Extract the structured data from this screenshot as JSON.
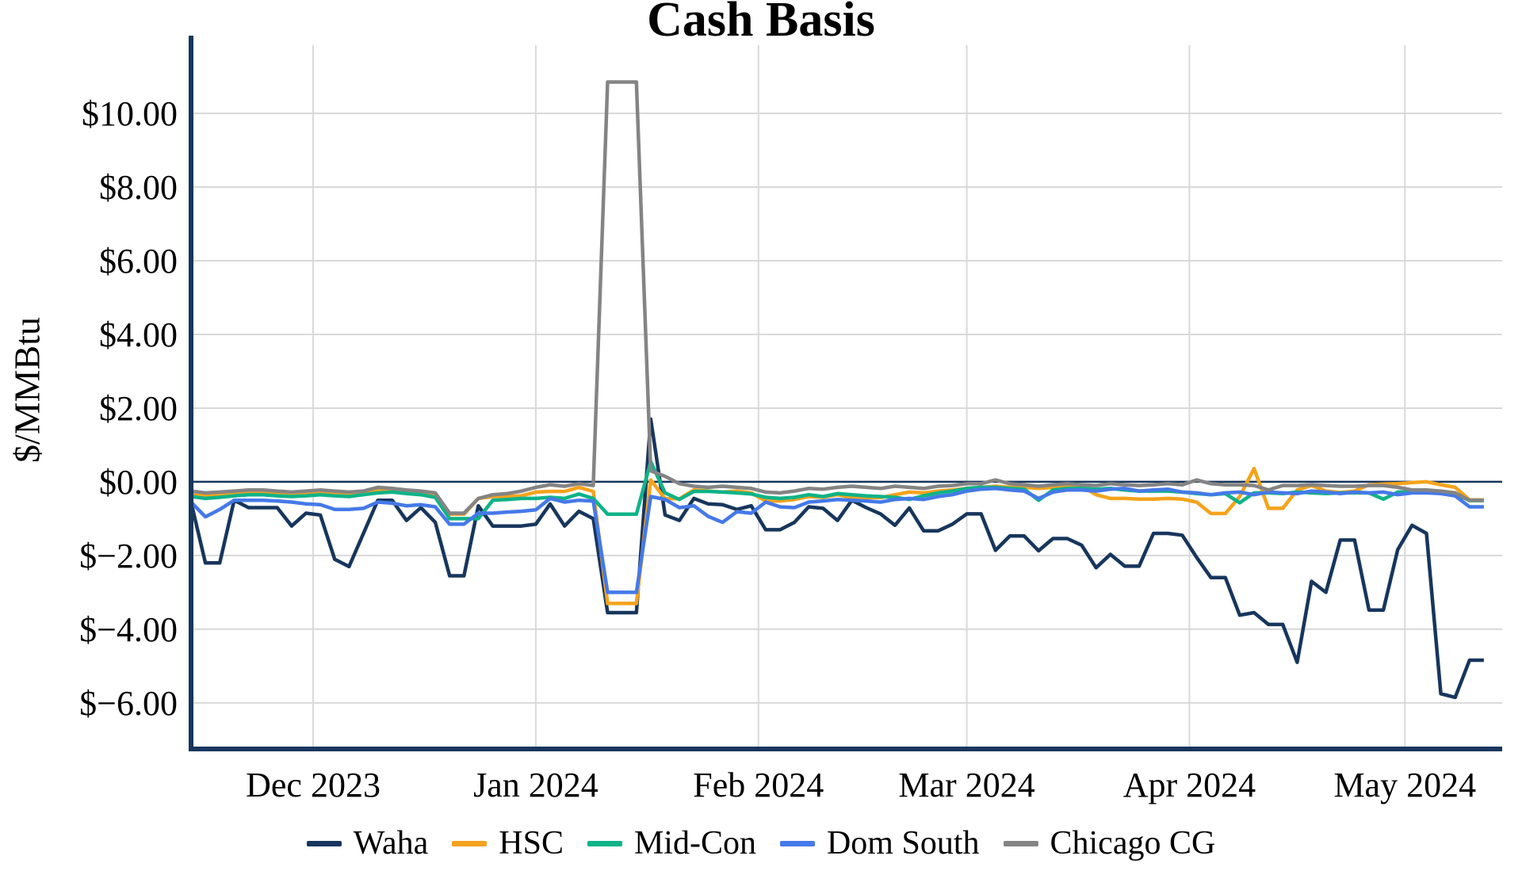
{
  "chart_data": {
    "type": "line",
    "title": "Cash Basis",
    "ylabel": "$/MMBtu",
    "xlabel": "",
    "grid": true,
    "legend_position": "bottom",
    "x_unit": "date",
    "x_range": [
      "2023-11-14",
      "2024-05-13"
    ],
    "ylim": [
      -7.25,
      11.85
    ],
    "y_ticks": [
      {
        "value": 10,
        "label": "$10.00"
      },
      {
        "value": 8,
        "label": "$8.00"
      },
      {
        "value": 6,
        "label": "$6.00"
      },
      {
        "value": 4,
        "label": "$4.00"
      },
      {
        "value": 2,
        "label": "$2.00"
      },
      {
        "value": 0,
        "label": "$0.00"
      },
      {
        "value": -2,
        "label": "$−2.00"
      },
      {
        "value": -4,
        "label": "$−4.00"
      },
      {
        "value": -6,
        "label": "$−6.00"
      }
    ],
    "x_ticks": [
      {
        "date": "2023-12-01",
        "label": "Dec 2023"
      },
      {
        "date": "2024-01-01",
        "label": "Jan 2024"
      },
      {
        "date": "2024-02-01",
        "label": "Feb 2024"
      },
      {
        "date": "2024-03-01",
        "label": "Mar 2024"
      },
      {
        "date": "2024-04-01",
        "label": "Apr 2024"
      },
      {
        "date": "2024-05-01",
        "label": "May 2024"
      }
    ],
    "zero_line": 0,
    "dates": [
      "2023-11-14",
      "2023-11-16",
      "2023-11-18",
      "2023-11-20",
      "2023-11-22",
      "2023-11-24",
      "2023-11-26",
      "2023-11-28",
      "2023-11-30",
      "2023-12-02",
      "2023-12-04",
      "2023-12-06",
      "2023-12-08",
      "2023-12-10",
      "2023-12-12",
      "2023-12-14",
      "2023-12-16",
      "2023-12-18",
      "2023-12-20",
      "2023-12-22",
      "2023-12-24",
      "2023-12-26",
      "2023-12-28",
      "2023-12-30",
      "2024-01-01",
      "2024-01-03",
      "2024-01-05",
      "2024-01-07",
      "2024-01-09",
      "2024-01-11",
      "2024-01-13",
      "2024-01-15",
      "2024-01-17",
      "2024-01-19",
      "2024-01-21",
      "2024-01-23",
      "2024-01-25",
      "2024-01-27",
      "2024-01-29",
      "2024-01-31",
      "2024-02-02",
      "2024-02-04",
      "2024-02-06",
      "2024-02-08",
      "2024-02-10",
      "2024-02-12",
      "2024-02-14",
      "2024-02-16",
      "2024-02-18",
      "2024-02-20",
      "2024-02-22",
      "2024-02-24",
      "2024-02-26",
      "2024-02-28",
      "2024-03-01",
      "2024-03-03",
      "2024-03-05",
      "2024-03-07",
      "2024-03-09",
      "2024-03-11",
      "2024-03-13",
      "2024-03-15",
      "2024-03-17",
      "2024-03-19",
      "2024-03-21",
      "2024-03-23",
      "2024-03-25",
      "2024-03-27",
      "2024-03-29",
      "2024-03-31",
      "2024-04-02",
      "2024-04-04",
      "2024-04-06",
      "2024-04-08",
      "2024-04-10",
      "2024-04-12",
      "2024-04-14",
      "2024-04-16",
      "2024-04-18",
      "2024-04-20",
      "2024-04-22",
      "2024-04-24",
      "2024-04-26",
      "2024-04-28",
      "2024-04-30",
      "2024-05-02",
      "2024-05-04",
      "2024-05-06",
      "2024-05-08",
      "2024-05-10",
      "2024-05-12"
    ],
    "series": [
      {
        "name": "Waha",
        "color": "#17365d",
        "values": [
          -0.55,
          -2.2,
          -2.2,
          -0.5,
          -0.7,
          -0.7,
          -0.7,
          -1.2,
          -0.85,
          -0.9,
          -2.1,
          -2.3,
          -1.4,
          -0.5,
          -0.5,
          -1.05,
          -0.7,
          -1.1,
          -2.55,
          -2.55,
          -0.65,
          -1.2,
          -1.2,
          -1.2,
          -1.15,
          -0.6,
          -1.2,
          -0.8,
          -1.0,
          -3.55,
          -3.55,
          -3.55,
          1.7,
          -0.9,
          -1.05,
          -0.45,
          -0.6,
          -0.62,
          -0.75,
          -0.65,
          -1.3,
          -1.3,
          -1.1,
          -0.68,
          -0.72,
          -1.05,
          -0.5,
          -0.7,
          -0.87,
          -1.18,
          -0.71,
          -1.33,
          -1.33,
          -1.15,
          -0.87,
          -0.87,
          -1.86,
          -1.47,
          -1.47,
          -1.87,
          -1.54,
          -1.54,
          -1.72,
          -2.33,
          -1.97,
          -2.29,
          -2.29,
          -1.4,
          -1.4,
          -1.45,
          -2.05,
          -2.6,
          -2.6,
          -3.62,
          -3.55,
          -3.87,
          -3.87,
          -4.9,
          -2.7,
          -3.0,
          -1.58,
          -1.58,
          -3.48,
          -3.48,
          -1.84,
          -1.18,
          -1.4,
          -5.75,
          -5.85,
          -4.84,
          -4.84
        ]
      },
      {
        "name": "HSC",
        "color": "#f5a31c",
        "values": [
          -0.3,
          -0.38,
          -0.35,
          -0.3,
          -0.28,
          -0.28,
          -0.3,
          -0.32,
          -0.3,
          -0.28,
          -0.3,
          -0.32,
          -0.28,
          -0.22,
          -0.2,
          -0.25,
          -0.28,
          -0.35,
          -0.88,
          -0.88,
          -0.45,
          -0.4,
          -0.4,
          -0.38,
          -0.28,
          -0.26,
          -0.26,
          -0.15,
          -0.26,
          -3.3,
          -3.3,
          -3.3,
          0.05,
          -0.46,
          -0.46,
          -0.22,
          -0.25,
          -0.28,
          -0.25,
          -0.3,
          -0.52,
          -0.52,
          -0.48,
          -0.4,
          -0.42,
          -0.35,
          -0.43,
          -0.43,
          -0.43,
          -0.35,
          -0.28,
          -0.3,
          -0.25,
          -0.22,
          -0.18,
          -0.15,
          -0.12,
          -0.15,
          -0.15,
          -0.18,
          -0.15,
          -0.12,
          -0.12,
          -0.35,
          -0.45,
          -0.45,
          -0.47,
          -0.47,
          -0.45,
          -0.47,
          -0.55,
          -0.86,
          -0.86,
          -0.4,
          0.36,
          -0.72,
          -0.72,
          -0.22,
          -0.1,
          -0.25,
          -0.29,
          -0.25,
          -0.08,
          -0.06,
          -0.05,
          -0.02,
          0.0,
          -0.08,
          -0.15,
          -0.49,
          -0.49
        ]
      },
      {
        "name": "Mid-Con",
        "color": "#0fb388",
        "values": [
          -0.4,
          -0.45,
          -0.42,
          -0.38,
          -0.35,
          -0.35,
          -0.38,
          -0.4,
          -0.38,
          -0.35,
          -0.38,
          -0.4,
          -0.35,
          -0.3,
          -0.28,
          -0.32,
          -0.35,
          -0.42,
          -1.0,
          -1.0,
          -1.0,
          -0.5,
          -0.48,
          -0.45,
          -0.45,
          -0.42,
          -0.45,
          -0.33,
          -0.45,
          -0.88,
          -0.88,
          -0.88,
          0.55,
          -0.3,
          -0.48,
          -0.26,
          -0.26,
          -0.28,
          -0.3,
          -0.33,
          -0.42,
          -0.45,
          -0.42,
          -0.35,
          -0.4,
          -0.32,
          -0.35,
          -0.38,
          -0.4,
          -0.42,
          -0.48,
          -0.38,
          -0.3,
          -0.25,
          -0.18,
          -0.15,
          -0.15,
          -0.18,
          -0.2,
          -0.5,
          -0.22,
          -0.18,
          -0.18,
          -0.2,
          -0.18,
          -0.22,
          -0.25,
          -0.25,
          -0.25,
          -0.28,
          -0.32,
          -0.35,
          -0.32,
          -0.57,
          -0.3,
          -0.3,
          -0.32,
          -0.28,
          -0.3,
          -0.32,
          -0.3,
          -0.3,
          -0.3,
          -0.47,
          -0.28,
          -0.28,
          -0.28,
          -0.3,
          -0.32,
          -0.51,
          -0.51
        ]
      },
      {
        "name": "Dom South",
        "color": "#4579e8",
        "values": [
          -0.55,
          -0.95,
          -0.75,
          -0.5,
          -0.5,
          -0.5,
          -0.52,
          -0.55,
          -0.6,
          -0.62,
          -0.75,
          -0.75,
          -0.72,
          -0.55,
          -0.58,
          -0.65,
          -0.62,
          -0.68,
          -1.15,
          -1.15,
          -0.85,
          -0.85,
          -0.82,
          -0.8,
          -0.76,
          -0.45,
          -0.55,
          -0.5,
          -0.52,
          -3.0,
          -3.0,
          -3.0,
          -0.4,
          -0.48,
          -0.7,
          -0.65,
          -0.94,
          -1.1,
          -0.81,
          -0.85,
          -0.55,
          -0.68,
          -0.7,
          -0.55,
          -0.52,
          -0.48,
          -0.5,
          -0.52,
          -0.55,
          -0.48,
          -0.45,
          -0.48,
          -0.4,
          -0.35,
          -0.25,
          -0.2,
          -0.18,
          -0.22,
          -0.25,
          -0.45,
          -0.28,
          -0.22,
          -0.22,
          -0.25,
          -0.2,
          -0.18,
          -0.25,
          -0.22,
          -0.2,
          -0.28,
          -0.3,
          -0.35,
          -0.3,
          -0.28,
          -0.35,
          -0.28,
          -0.3,
          -0.32,
          -0.25,
          -0.28,
          -0.32,
          -0.28,
          -0.3,
          -0.28,
          -0.35,
          -0.3,
          -0.3,
          -0.32,
          -0.38,
          -0.68,
          -0.68
        ]
      },
      {
        "name": "Chicago CG",
        "color": "#848484",
        "values": [
          -0.25,
          -0.3,
          -0.28,
          -0.25,
          -0.22,
          -0.22,
          -0.25,
          -0.28,
          -0.25,
          -0.22,
          -0.25,
          -0.28,
          -0.25,
          -0.15,
          -0.18,
          -0.22,
          -0.25,
          -0.3,
          -0.85,
          -0.85,
          -0.45,
          -0.35,
          -0.32,
          -0.25,
          -0.15,
          -0.08,
          -0.12,
          -0.05,
          -0.1,
          10.85,
          10.85,
          10.85,
          0.3,
          0.15,
          -0.05,
          -0.12,
          -0.15,
          -0.12,
          -0.15,
          -0.18,
          -0.28,
          -0.3,
          -0.25,
          -0.18,
          -0.2,
          -0.15,
          -0.12,
          -0.15,
          -0.18,
          -0.12,
          -0.15,
          -0.18,
          -0.12,
          -0.1,
          -0.05,
          -0.05,
          0.05,
          -0.05,
          -0.08,
          -0.12,
          -0.08,
          -0.05,
          -0.08,
          -0.1,
          -0.05,
          -0.08,
          -0.1,
          -0.08,
          -0.05,
          -0.08,
          0.05,
          -0.05,
          -0.08,
          -0.08,
          -0.1,
          -0.22,
          -0.1,
          -0.1,
          -0.08,
          -0.1,
          -0.12,
          -0.12,
          -0.1,
          -0.1,
          -0.15,
          -0.22,
          -0.22,
          -0.25,
          -0.3,
          -0.5,
          -0.5
        ]
      }
    ]
  },
  "colors": {
    "background": "#ffffff",
    "grid": "#d9d9d9",
    "axis": "#17365d",
    "zero_line": "#17365d",
    "text": "#000000"
  }
}
